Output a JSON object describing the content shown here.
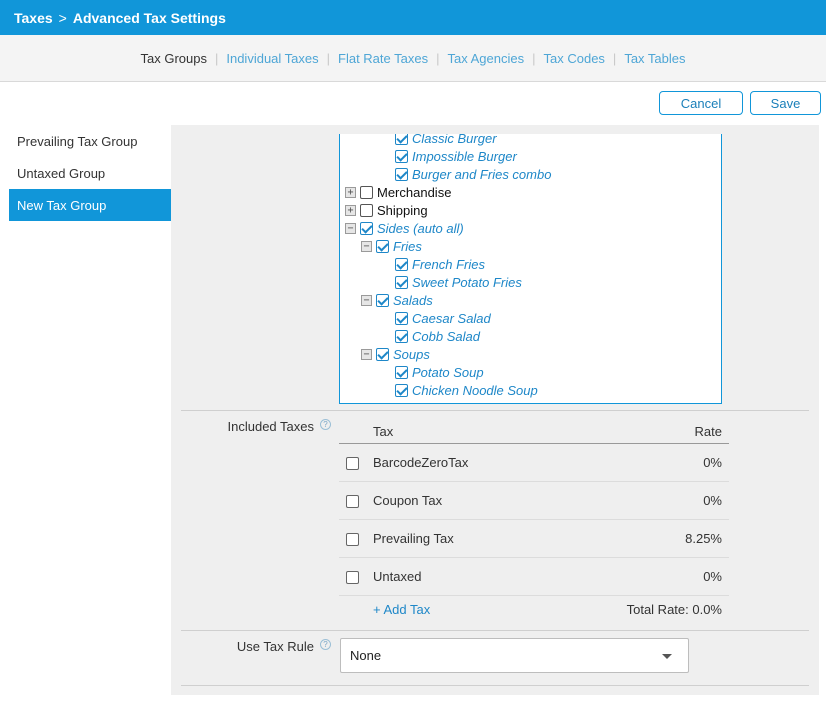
{
  "breadcrumb": {
    "root": "Taxes",
    "separator": ">",
    "current": "Advanced Tax Settings"
  },
  "tabs": [
    {
      "label": "Tax Groups",
      "active": true
    },
    {
      "label": "Individual Taxes",
      "active": false
    },
    {
      "label": "Flat Rate Taxes",
      "active": false
    },
    {
      "label": "Tax Agencies",
      "active": false
    },
    {
      "label": "Tax Codes",
      "active": false
    },
    {
      "label": "Tax Tables",
      "active": false
    }
  ],
  "actions": {
    "cancel": "Cancel",
    "save": "Save"
  },
  "sidebar": {
    "items": [
      {
        "label": "Prevailing Tax Group",
        "active": false
      },
      {
        "label": "Untaxed Group",
        "active": false
      },
      {
        "label": "New Tax Group",
        "active": true
      }
    ]
  },
  "tree": {
    "items": [
      {
        "label": "Classic Burger",
        "checked": true,
        "expander": "",
        "italic": true,
        "level": 2
      },
      {
        "label": "Impossible Burger",
        "checked": true,
        "expander": "",
        "italic": true,
        "level": 2
      },
      {
        "label": "Burger and Fries combo",
        "checked": true,
        "expander": "",
        "italic": true,
        "level": 2
      },
      {
        "label": "Merchandise",
        "checked": false,
        "expander": "+",
        "italic": false,
        "level": 0
      },
      {
        "label": "Shipping",
        "checked": false,
        "expander": "+",
        "italic": false,
        "level": 0
      },
      {
        "label": "Sides (auto all)",
        "checked": true,
        "expander": "−",
        "italic": true,
        "level": 0
      },
      {
        "label": "Fries",
        "checked": true,
        "expander": "−",
        "italic": true,
        "level": 1
      },
      {
        "label": "French Fries",
        "checked": true,
        "expander": "",
        "italic": true,
        "level": 2
      },
      {
        "label": "Sweet Potato Fries",
        "checked": true,
        "expander": "",
        "italic": true,
        "level": 2
      },
      {
        "label": "Salads",
        "checked": true,
        "expander": "−",
        "italic": true,
        "level": 1
      },
      {
        "label": "Caesar Salad",
        "checked": true,
        "expander": "",
        "italic": true,
        "level": 2
      },
      {
        "label": "Cobb Salad",
        "checked": true,
        "expander": "",
        "italic": true,
        "level": 2
      },
      {
        "label": "Soups",
        "checked": true,
        "expander": "−",
        "italic": true,
        "level": 1
      },
      {
        "label": "Potato Soup",
        "checked": true,
        "expander": "",
        "italic": true,
        "level": 2
      },
      {
        "label": "Chicken Noodle Soup",
        "checked": true,
        "expander": "",
        "italic": true,
        "level": 2
      }
    ]
  },
  "included_taxes": {
    "label": "Included Taxes",
    "help": "?",
    "col_tax": "Tax",
    "col_rate": "Rate",
    "rows": [
      {
        "name": "BarcodeZeroTax",
        "rate": "0%",
        "checked": false
      },
      {
        "name": "Coupon Tax",
        "rate": "0%",
        "checked": false
      },
      {
        "name": "Prevailing Tax",
        "rate": "8.25%",
        "checked": false
      },
      {
        "name": "Untaxed",
        "rate": "0%",
        "checked": false
      }
    ],
    "add_tax": "+ Add Tax",
    "total_rate": "Total Rate: 0.0%"
  },
  "tax_rule": {
    "label": "Use Tax Rule",
    "help": "?",
    "value": "None"
  },
  "colors": {
    "accent": "#1196d9",
    "link": "#1e87c8"
  }
}
